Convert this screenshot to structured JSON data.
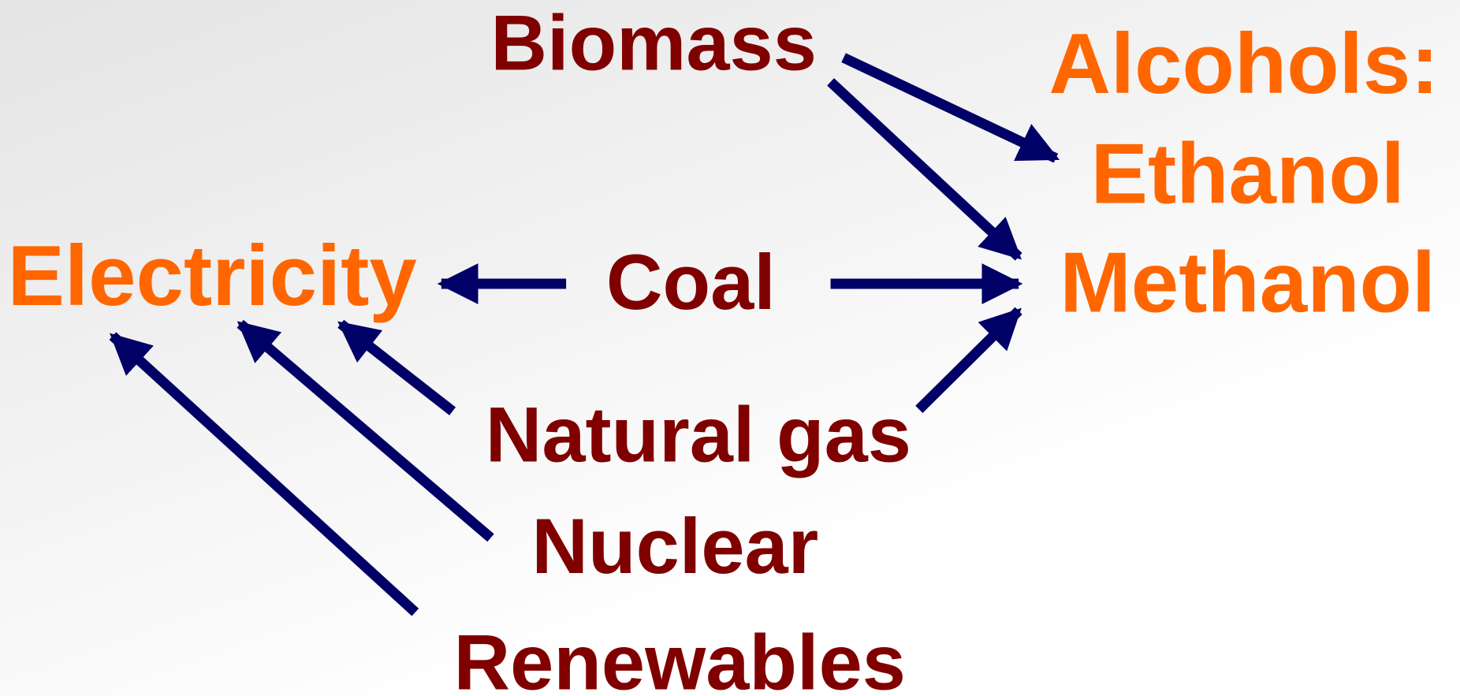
{
  "sources": [
    {
      "label": "Biomass"
    },
    {
      "label": "Coal"
    },
    {
      "label": "Natural gas"
    },
    {
      "label": "Nuclear"
    },
    {
      "label": "Renewables"
    }
  ],
  "products": [
    {
      "label": "Electricity"
    },
    {
      "label": "Alcohols:"
    },
    {
      "label": "Ethanol"
    },
    {
      "label": "Methanol"
    }
  ]
}
